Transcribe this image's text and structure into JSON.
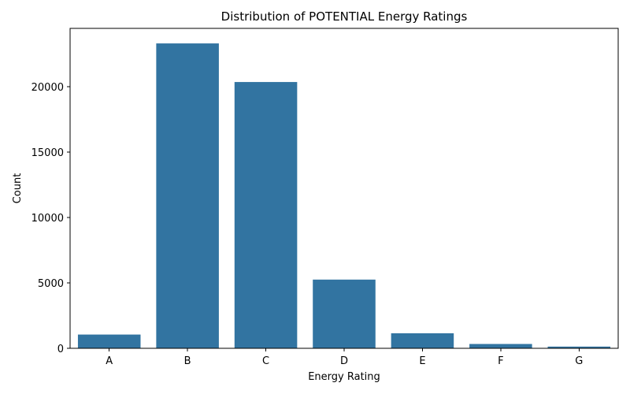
{
  "chart_data": {
    "type": "bar",
    "title": "Distribution of POTENTIAL Energy Ratings",
    "xlabel": "Energy Rating",
    "ylabel": "Count",
    "categories": [
      "A",
      "B",
      "C",
      "D",
      "E",
      "F",
      "G"
    ],
    "values": [
      1050,
      23300,
      20350,
      5250,
      1150,
      330,
      130
    ],
    "ylim": [
      0,
      24450
    ],
    "yticks": [
      0,
      5000,
      10000,
      15000,
      20000
    ],
    "ytick_labels": [
      "0",
      "5000",
      "10000",
      "15000",
      "20000"
    ],
    "grid": false,
    "legend": "none",
    "bar_color": "#3274a1"
  }
}
